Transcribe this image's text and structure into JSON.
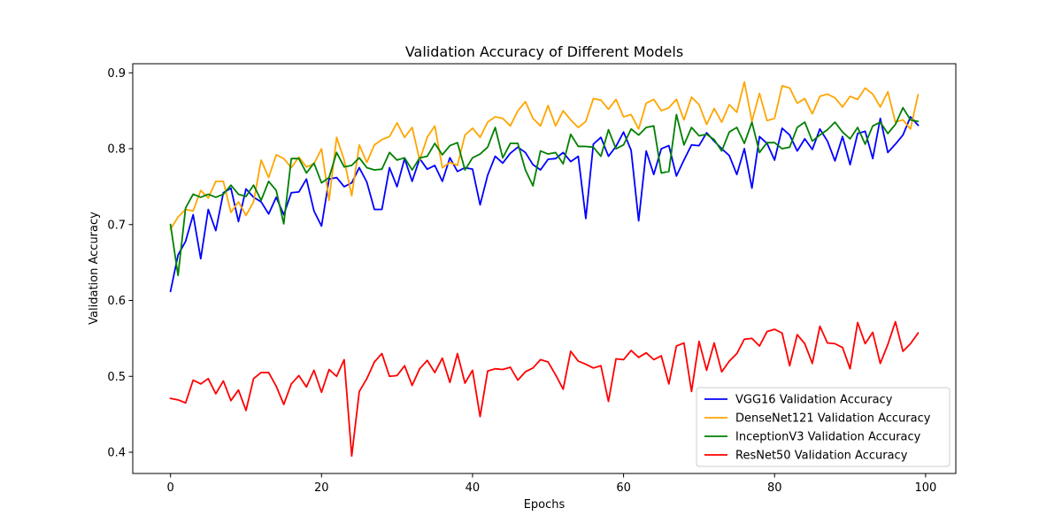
{
  "chart_data": {
    "type": "line",
    "title": "Validation Accuracy of Different Models",
    "xlabel": "Epochs",
    "ylabel": "Validation Accuracy",
    "xlim": [
      -5,
      104
    ],
    "ylim": [
      0.372,
      0.912
    ],
    "xticks": [
      0,
      20,
      40,
      60,
      80,
      100
    ],
    "yticks": [
      0.4,
      0.5,
      0.6,
      0.7,
      0.8,
      0.9
    ],
    "xtick_labels": [
      "0",
      "20",
      "40",
      "60",
      "80",
      "100"
    ],
    "ytick_labels": [
      "0.4",
      "0.5",
      "0.6",
      "0.7",
      "0.8",
      "0.9"
    ],
    "grid": false,
    "legend_position": "lower-right",
    "series": [
      {
        "name": "VGG16 Validation Accuracy",
        "color": "#0000ff",
        "values": [
          0.612,
          0.66,
          0.678,
          0.713,
          0.655,
          0.72,
          0.692,
          0.742,
          0.748,
          0.704,
          0.747,
          0.736,
          0.73,
          0.714,
          0.736,
          0.713,
          0.742,
          0.743,
          0.76,
          0.718,
          0.698,
          0.76,
          0.762,
          0.75,
          0.755,
          0.775,
          0.756,
          0.72,
          0.72,
          0.775,
          0.75,
          0.787,
          0.757,
          0.787,
          0.773,
          0.778,
          0.757,
          0.788,
          0.77,
          0.775,
          0.773,
          0.726,
          0.765,
          0.79,
          0.781,
          0.794,
          0.802,
          0.795,
          0.779,
          0.772,
          0.786,
          0.787,
          0.795,
          0.783,
          0.79,
          0.708,
          0.806,
          0.815,
          0.79,
          0.803,
          0.822,
          0.798,
          0.705,
          0.797,
          0.766,
          0.8,
          0.804,
          0.764,
          0.785,
          0.805,
          0.804,
          0.821,
          0.81,
          0.8,
          0.791,
          0.766,
          0.8,
          0.748,
          0.816,
          0.807,
          0.785,
          0.827,
          0.818,
          0.797,
          0.813,
          0.799,
          0.826,
          0.81,
          0.784,
          0.816,
          0.779,
          0.82,
          0.823,
          0.787,
          0.84,
          0.795,
          0.806,
          0.818,
          0.842,
          0.831
        ]
      },
      {
        "name": "DenseNet121 Validation Accuracy",
        "color": "#ffa500",
        "values": [
          0.694,
          0.71,
          0.72,
          0.718,
          0.745,
          0.735,
          0.757,
          0.757,
          0.716,
          0.73,
          0.712,
          0.73,
          0.785,
          0.762,
          0.792,
          0.787,
          0.775,
          0.789,
          0.776,
          0.78,
          0.8,
          0.732,
          0.815,
          0.785,
          0.738,
          0.805,
          0.782,
          0.805,
          0.812,
          0.816,
          0.834,
          0.815,
          0.828,
          0.785,
          0.815,
          0.83,
          0.775,
          0.782,
          0.778,
          0.818,
          0.827,
          0.815,
          0.835,
          0.842,
          0.84,
          0.83,
          0.85,
          0.862,
          0.84,
          0.83,
          0.857,
          0.83,
          0.85,
          0.838,
          0.828,
          0.836,
          0.866,
          0.864,
          0.852,
          0.865,
          0.842,
          0.845,
          0.826,
          0.86,
          0.865,
          0.85,
          0.854,
          0.865,
          0.838,
          0.868,
          0.858,
          0.832,
          0.853,
          0.835,
          0.858,
          0.848,
          0.888,
          0.836,
          0.873,
          0.837,
          0.84,
          0.883,
          0.88,
          0.86,
          0.866,
          0.846,
          0.869,
          0.872,
          0.867,
          0.855,
          0.869,
          0.865,
          0.88,
          0.872,
          0.855,
          0.875,
          0.835,
          0.838,
          0.826,
          0.871
        ]
      },
      {
        "name": "InceptionV3 Validation Accuracy",
        "color": "#008000",
        "values": [
          0.7,
          0.633,
          0.722,
          0.74,
          0.736,
          0.74,
          0.736,
          0.74,
          0.752,
          0.74,
          0.737,
          0.752,
          0.732,
          0.757,
          0.745,
          0.701,
          0.787,
          0.787,
          0.768,
          0.781,
          0.755,
          0.762,
          0.795,
          0.776,
          0.778,
          0.788,
          0.775,
          0.772,
          0.773,
          0.795,
          0.785,
          0.788,
          0.772,
          0.788,
          0.79,
          0.807,
          0.792,
          0.804,
          0.808,
          0.772,
          0.788,
          0.793,
          0.802,
          0.828,
          0.788,
          0.807,
          0.807,
          0.772,
          0.751,
          0.797,
          0.793,
          0.795,
          0.78,
          0.819,
          0.803,
          0.803,
          0.802,
          0.79,
          0.825,
          0.8,
          0.805,
          0.826,
          0.818,
          0.828,
          0.83,
          0.768,
          0.77,
          0.845,
          0.805,
          0.828,
          0.817,
          0.819,
          0.812,
          0.797,
          0.822,
          0.828,
          0.807,
          0.835,
          0.795,
          0.808,
          0.808,
          0.8,
          0.802,
          0.828,
          0.835,
          0.81,
          0.818,
          0.825,
          0.835,
          0.822,
          0.813,
          0.828,
          0.806,
          0.83,
          0.835,
          0.82,
          0.832,
          0.854,
          0.838,
          0.836
        ]
      },
      {
        "name": "ResNet50 Validation Accuracy",
        "color": "#ff0000",
        "values": [
          0.471,
          0.469,
          0.465,
          0.495,
          0.49,
          0.497,
          0.477,
          0.494,
          0.468,
          0.482,
          0.455,
          0.497,
          0.505,
          0.505,
          0.487,
          0.463,
          0.49,
          0.501,
          0.486,
          0.508,
          0.479,
          0.509,
          0.5,
          0.522,
          0.395,
          0.48,
          0.497,
          0.519,
          0.53,
          0.5,
          0.501,
          0.514,
          0.488,
          0.51,
          0.521,
          0.505,
          0.524,
          0.492,
          0.53,
          0.491,
          0.508,
          0.447,
          0.507,
          0.51,
          0.509,
          0.512,
          0.495,
          0.506,
          0.511,
          0.522,
          0.519,
          0.502,
          0.483,
          0.533,
          0.52,
          0.516,
          0.511,
          0.514,
          0.467,
          0.523,
          0.522,
          0.534,
          0.525,
          0.531,
          0.522,
          0.527,
          0.49,
          0.54,
          0.544,
          0.48,
          0.546,
          0.508,
          0.544,
          0.506,
          0.52,
          0.53,
          0.549,
          0.55,
          0.54,
          0.559,
          0.562,
          0.557,
          0.514,
          0.555,
          0.543,
          0.517,
          0.566,
          0.544,
          0.543,
          0.538,
          0.51,
          0.571,
          0.543,
          0.558,
          0.517,
          0.542,
          0.572,
          0.533,
          0.543,
          0.557
        ]
      }
    ]
  }
}
